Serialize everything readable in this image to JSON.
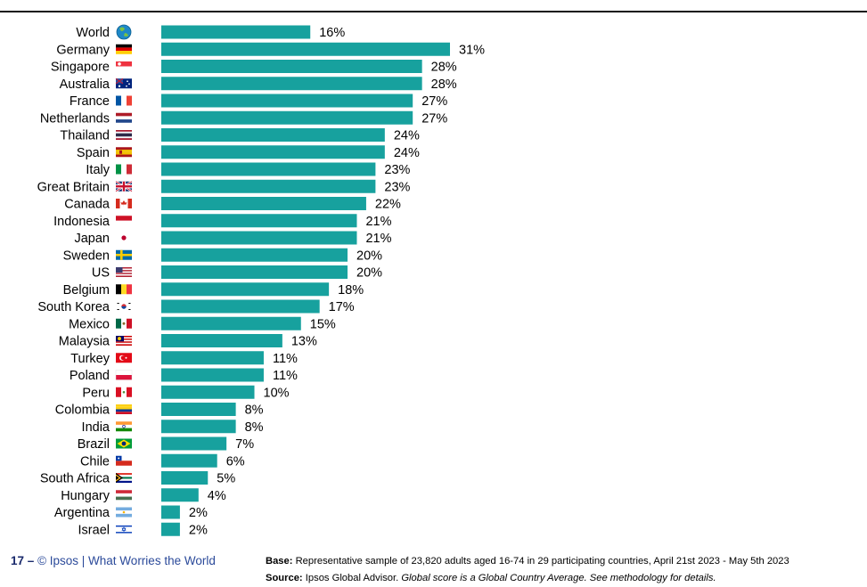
{
  "chart_data": {
    "type": "bar",
    "orientation": "horizontal",
    "categories": [
      "World",
      "Germany",
      "Singapore",
      "Australia",
      "France",
      "Netherlands",
      "Thailand",
      "Spain",
      "Italy",
      "Great Britain",
      "Canada",
      "Indonesia",
      "Japan",
      "Sweden",
      "US",
      "Belgium",
      "South Korea",
      "Mexico",
      "Malaysia",
      "Turkey",
      "Poland",
      "Peru",
      "Colombia",
      "India",
      "Brazil",
      "Chile",
      "South Africa",
      "Hungary",
      "Argentina",
      "Israel"
    ],
    "values": [
      16,
      31,
      28,
      28,
      27,
      27,
      24,
      24,
      23,
      23,
      22,
      21,
      21,
      20,
      20,
      18,
      17,
      15,
      13,
      11,
      11,
      10,
      8,
      8,
      7,
      6,
      5,
      4,
      2,
      2
    ],
    "value_labels": [
      "16%",
      "31%",
      "28%",
      "28%",
      "27%",
      "27%",
      "24%",
      "24%",
      "23%",
      "23%",
      "22%",
      "21%",
      "21%",
      "20%",
      "20%",
      "18%",
      "17%",
      "15%",
      "13%",
      "11%",
      "11%",
      "10%",
      "8%",
      "8%",
      "7%",
      "6%",
      "5%",
      "4%",
      "2%",
      "2%"
    ],
    "icons": [
      "globe-icon",
      "flag-germany-icon",
      "flag-singapore-icon",
      "flag-australia-icon",
      "flag-france-icon",
      "flag-netherlands-icon",
      "flag-thailand-icon",
      "flag-spain-icon",
      "flag-italy-icon",
      "flag-great-britain-icon",
      "flag-canada-icon",
      "flag-indonesia-icon",
      "flag-japan-icon",
      "flag-sweden-icon",
      "flag-us-icon",
      "flag-belgium-icon",
      "flag-south-korea-icon",
      "flag-mexico-icon",
      "flag-malaysia-icon",
      "flag-turkey-icon",
      "flag-poland-icon",
      "flag-peru-icon",
      "flag-colombia-icon",
      "flag-india-icon",
      "flag-brazil-icon",
      "flag-chile-icon",
      "flag-south-africa-icon",
      "flag-hungary-icon",
      "flag-argentina-icon",
      "flag-israel-icon"
    ],
    "bar_color": "#17A19E",
    "xlim": [
      0,
      31
    ],
    "grid": false,
    "legend": "none"
  },
  "footer": {
    "page_number": "17",
    "dash": "–",
    "copyright": "© Ipsos | What Worries the World",
    "base_label": "Base:",
    "base_text": "Representative sample of 23,820 adults aged 16-74 in 29 participating countries, April 21st 2023 - May 5th 2023",
    "source_label": "Source:",
    "source_text": "Ipsos Global Advisor.",
    "source_note": "Global score is a Global Country Average. See methodology for details."
  }
}
